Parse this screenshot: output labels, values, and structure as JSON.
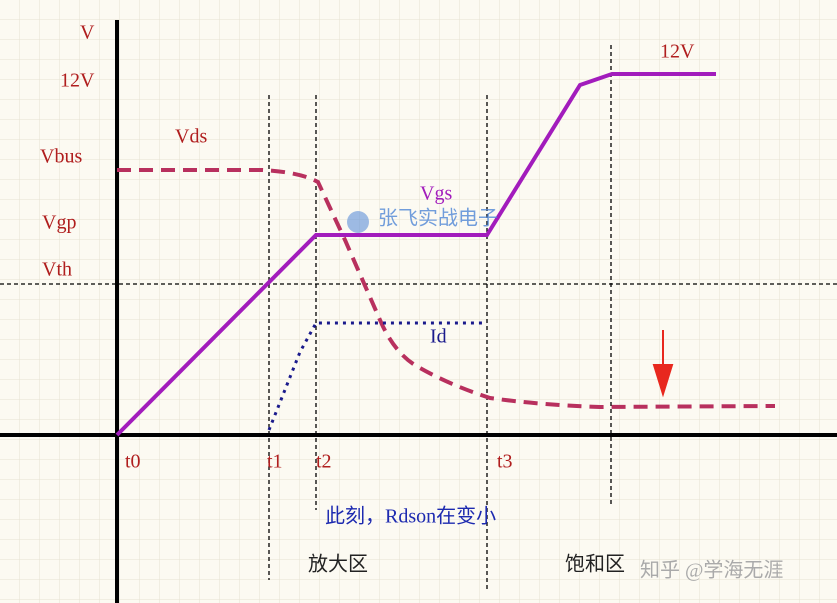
{
  "axis": {
    "y_label": "V"
  },
  "levels": {
    "top": "12V",
    "bus": "Vbus",
    "plateau": "Vgp",
    "threshold": "Vth"
  },
  "curves": {
    "vds": "Vds",
    "vgs": "Vgs",
    "id": "Id",
    "vgs_final": "12V"
  },
  "times": [
    "t0",
    "t1",
    "t2",
    "t3"
  ],
  "annotation": "此刻，Rdson在变小",
  "regions": {
    "linear": "放大区",
    "saturation": "饱和区"
  },
  "logo": "张飞实战电子",
  "watermark": "知乎 @学海无涯"
}
